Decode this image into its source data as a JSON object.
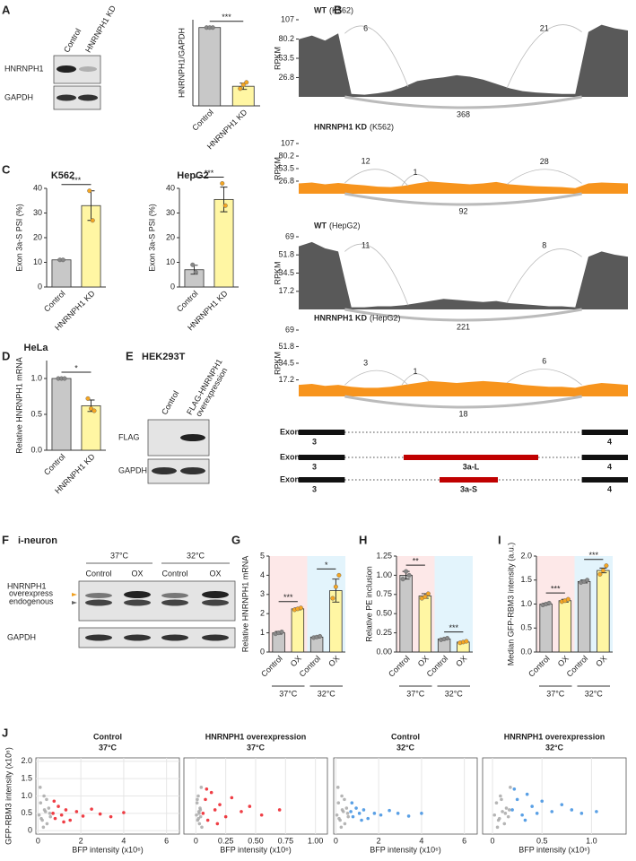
{
  "figure": {
    "panel_labels": [
      "A",
      "B",
      "C",
      "D",
      "E",
      "F",
      "G",
      "H",
      "I",
      "J"
    ]
  },
  "blots": [
    {
      "lanes": [
        "Control",
        "HNRNPH1 KD"
      ],
      "rows": [
        "HNRNPH1",
        "GAPDH"
      ]
    },
    {
      "title": "HEK293T",
      "lanes": [
        "Control",
        "FLAG-HNRNPH1"
      ],
      "lane_2_line_2": "overexpression",
      "rows": [
        "FLAG",
        "GAPDH"
      ]
    },
    {
      "title": "i-neuron",
      "groups": [
        "37°C",
        "32°C"
      ],
      "lanes": [
        "Control",
        "OX",
        "Control",
        "OX"
      ],
      "rows": [
        "HNRNPH1",
        "GAPDH"
      ],
      "bands": [
        "overexpress",
        "endogenous"
      ],
      "band_colors": [
        "#f0a020",
        "#666666"
      ]
    }
  ],
  "gene_models": {
    "label": "Exon",
    "exon_left": "3",
    "exon_right": "4",
    "isoforms": [
      "3a-L",
      "3a-S"
    ],
    "isoform_color": "#c00000"
  },
  "chart_data": [
    {
      "type": "bar",
      "ylabel": "HNRNPH1/GAPDH",
      "categories": [
        "Control",
        "HNRNPH1 KD"
      ],
      "values": [
        1.0,
        0.25
      ],
      "errors": [
        0,
        0.04
      ],
      "replicates": [
        [
          1,
          1,
          1
        ],
        [
          0.22,
          0.27,
          0.3
        ]
      ],
      "colors": [
        "#c8c8c8",
        "#fff6a3"
      ],
      "replicate_colors": [
        "#888888",
        "#f5a623"
      ],
      "ylim": [
        0,
        1.1
      ],
      "significance": [
        "***"
      ]
    },
    {
      "type": "bar",
      "title": "K562",
      "ylabel": "Exon 3a-S PSI (%)",
      "categories": [
        "Control",
        "HNRNPH1 KD"
      ],
      "values": [
        11,
        33
      ],
      "errors": [
        0.3,
        6
      ],
      "replicates": [
        [
          11,
          11
        ],
        [
          39,
          27
        ]
      ],
      "colors": [
        "#c8c8c8",
        "#fff6a3"
      ],
      "replicate_colors": [
        "#888888",
        "#f5a623"
      ],
      "ylim": [
        0,
        40
      ],
      "yticks": [
        0,
        10,
        20,
        30,
        40
      ],
      "significance": [
        "***"
      ]
    },
    {
      "type": "bar",
      "title": "HepG2",
      "ylabel": "Exon 3a-S PSI (%)",
      "categories": [
        "Control",
        "HNRNPH1 KD"
      ],
      "values": [
        7,
        35.5
      ],
      "errors": [
        1.8,
        5
      ],
      "replicates": [
        [
          9,
          6
        ],
        [
          42,
          33
        ]
      ],
      "colors": [
        "#c8c8c8",
        "#fff6a3"
      ],
      "replicate_colors": [
        "#888888",
        "#f5a623"
      ],
      "ylim": [
        0,
        40
      ],
      "yticks": [
        0,
        10,
        20,
        30,
        40
      ],
      "significance": [
        "***"
      ]
    },
    {
      "type": "bar",
      "title": "HeLa",
      "ylabel": "Relative HNRNPH1 mRNA",
      "categories": [
        "Control",
        "HNRNPH1 KD"
      ],
      "values": [
        1.0,
        0.62
      ],
      "errors": [
        0,
        0.08
      ],
      "replicates": [
        [
          1,
          1,
          1
        ],
        [
          0.72,
          0.58,
          0.55
        ]
      ],
      "colors": [
        "#c8c8c8",
        "#fff6a3"
      ],
      "replicate_colors": [
        "#888888",
        "#f5a623"
      ],
      "ylim": [
        0,
        1.25
      ],
      "yticks": [
        {
          "value": 0,
          "label": "0.0"
        },
        0.5,
        {
          "value": 1,
          "label": "1.0"
        }
      ],
      "significance": [
        "*"
      ]
    },
    {
      "type": "bar",
      "ylabel": "Relative HNRNPH1 mRNA",
      "categories": [
        "Control",
        "OX",
        "Control",
        "OX"
      ],
      "groups": [
        "37°C",
        "32°C"
      ],
      "group_colors": [
        "#fde8e8",
        "#e3f4fc"
      ],
      "values": [
        1.0,
        2.25,
        0.78,
        3.2
      ],
      "errors": [
        0.07,
        0.05,
        0.05,
        0.6
      ],
      "replicates": [
        [
          0.95,
          1.0,
          1.05
        ],
        [
          2.2,
          2.25,
          2.3
        ],
        [
          0.75,
          0.78,
          0.82
        ],
        [
          2.8,
          3.4,
          4.0
        ]
      ],
      "colors": [
        "#c8c8c8",
        "#fff6a3"
      ],
      "replicate_colors": [
        "#888888",
        "#f5a623"
      ],
      "ylim": [
        0,
        5
      ],
      "yticks": [
        0,
        1,
        2,
        3,
        4,
        5
      ],
      "significance": [
        "***",
        "*"
      ]
    },
    {
      "type": "bar",
      "ylabel": "Relative PE inclusion",
      "categories": [
        "Control",
        "OX",
        "Control",
        "OX"
      ],
      "groups": [
        "37°C",
        "32°C"
      ],
      "group_colors": [
        "#fde8e8",
        "#e3f4fc"
      ],
      "values": [
        1.0,
        0.73,
        0.17,
        0.13
      ],
      "errors": [
        0.05,
        0.03,
        0.01,
        0.01
      ],
      "replicates": [
        [
          0.95,
          1.05,
          1.0
        ],
        [
          0.7,
          0.72,
          0.76
        ],
        [
          0.16,
          0.17,
          0.18
        ],
        [
          0.12,
          0.13,
          0.14
        ]
      ],
      "colors": [
        "#c8c8c8",
        "#fff6a3"
      ],
      "replicate_colors": [
        "#888888",
        "#f5a623"
      ],
      "ylim": [
        0,
        1.25
      ],
      "yticks": [
        {
          "value": 0,
          "label": "0.00"
        },
        0.25,
        {
          "value": 0.5,
          "label": "0.50"
        },
        0.75,
        {
          "value": 1,
          "label": "1.00"
        },
        1.25
      ],
      "significance": [
        "**",
        "***"
      ]
    },
    {
      "type": "bar",
      "ylabel": "Median GFP-RBM3 intensity (a.u.)",
      "categories": [
        "Control",
        "OX",
        "Control",
        "OX"
      ],
      "groups": [
        "37°C",
        "32°C"
      ],
      "group_colors": [
        "#fde8e8",
        "#e3f4fc"
      ],
      "values": [
        1.0,
        1.07,
        1.47,
        1.7
      ],
      "errors": [
        0.02,
        0.03,
        0.03,
        0.05
      ],
      "replicates": [
        [
          0.98,
          1.0,
          1.02
        ],
        [
          1.05,
          1.07,
          1.1
        ],
        [
          1.45,
          1.47,
          1.5
        ],
        [
          1.62,
          1.7,
          1.8
        ]
      ],
      "colors": [
        "#c8c8c8",
        "#fff6a3"
      ],
      "replicate_colors": [
        "#888888",
        "#f5a623"
      ],
      "ylim": [
        0,
        2
      ],
      "yticks": [
        {
          "value": 0,
          "label": "0.0"
        },
        0.5,
        {
          "value": 1,
          "label": "1.0"
        },
        1.5,
        {
          "value": 2,
          "label": "2.0"
        }
      ],
      "significance": [
        "***",
        "***"
      ]
    },
    {
      "type": "area",
      "title": "WT",
      "subtitle": "(K562)",
      "title_color": "#666666",
      "ylabel": "RPKM",
      "color": "#595959",
      "ylim": [
        0,
        107
      ],
      "yticks": [
        26.8,
        53.5,
        80.2,
        107
      ],
      "values": [
        80,
        85,
        78,
        88,
        4,
        3,
        5,
        8,
        14,
        22,
        25,
        27,
        30,
        28,
        24,
        18,
        12,
        8,
        6,
        5,
        4,
        4,
        90,
        100,
        95,
        92
      ],
      "junction_counts": [
        6,
        21,
        368
      ]
    },
    {
      "type": "area",
      "title": "HNRNPH1 KD",
      "subtitle": "(K562)",
      "title_color": "#f7941d",
      "ylabel": "RPKM",
      "color": "#f7941d",
      "ylim": [
        0,
        107
      ],
      "yticks": [
        26.8,
        53.5,
        80.2,
        107
      ],
      "values": [
        22,
        24,
        20,
        23,
        20,
        18,
        15,
        14,
        17,
        22,
        26,
        24,
        22,
        20,
        22,
        25,
        20,
        18,
        16,
        15,
        14,
        12,
        22,
        24,
        23,
        22
      ],
      "junction_counts": [
        12,
        1,
        28,
        92
      ]
    },
    {
      "type": "area",
      "title": "WT",
      "subtitle": "(HepG2)",
      "title_color": "#666666",
      "ylabel": "RPKM",
      "color": "#595959",
      "ylim": [
        0,
        69
      ],
      "yticks": [
        17.2,
        34.5,
        51.8,
        69
      ],
      "values": [
        60,
        64,
        58,
        55,
        2,
        2,
        3,
        3,
        4,
        6,
        8,
        10,
        9,
        8,
        7,
        8,
        6,
        5,
        4,
        3,
        3,
        2,
        50,
        55,
        52,
        50
      ],
      "junction_counts": [
        11,
        8,
        221
      ]
    },
    {
      "type": "area",
      "title": "HNRNPH1 KD",
      "subtitle": "(HepG2)",
      "title_color": "#f7941d",
      "ylabel": "RPKM",
      "color": "#f7941d",
      "ylim": [
        0,
        69
      ],
      "yticks": [
        17.2,
        34.5,
        51.8,
        69
      ],
      "values": [
        12,
        13,
        11,
        12,
        10,
        9,
        9,
        10,
        12,
        14,
        16,
        15,
        14,
        15,
        16,
        15,
        14,
        12,
        11,
        10,
        10,
        9,
        12,
        14,
        13,
        12
      ],
      "junction_counts": [
        3,
        1,
        6,
        18
      ]
    },
    {
      "type": "scatter",
      "title": "Control",
      "subtitle": "37°C",
      "xlabel": "BFP intensity (x10⁶)",
      "ylabel": "GFP-RBM3 intensity (x10⁶)",
      "xlim": [
        -0.1,
        6.6
      ],
      "ylim": [
        -0.1,
        2.1
      ],
      "xticks": [
        0,
        2,
        4,
        6
      ],
      "yticks": [
        0,
        0.5,
        {
          "value": 1,
          "label": "1.0"
        },
        1.5,
        {
          "value": 2,
          "label": "2.0"
        }
      ],
      "series": [
        {
          "color": "#a8a8a8",
          "x": [
            0.05,
            0.12,
            0.2,
            0.28,
            0.35,
            0.42,
            0.5,
            0.58,
            0.1,
            0.25,
            0.4,
            0.55,
            0.3,
            0.15
          ],
          "y": [
            0.45,
            0.8,
            0.3,
            1.0,
            0.55,
            0.2,
            0.65,
            0.4,
            1.25,
            0.1,
            0.9,
            0.5,
            0.6,
            0.35
          ]
        },
        {
          "color": "#ec1c24",
          "x": [
            0.7,
            0.8,
            0.95,
            1.1,
            1.3,
            1.5,
            1.8,
            2.1,
            2.5,
            2.9,
            3.4,
            4.0,
            0.75,
            1.2
          ],
          "y": [
            0.5,
            0.35,
            0.7,
            0.45,
            0.6,
            0.3,
            0.55,
            0.42,
            0.62,
            0.48,
            0.4,
            0.52,
            0.85,
            0.25
          ]
        }
      ]
    },
    {
      "type": "scatter",
      "title": "HNRNPH1 overexpression",
      "subtitle": "37°C",
      "xlabel": "BFP intensity (x10⁶)",
      "xlim": [
        -0.1,
        1.1
      ],
      "ylim": [
        -0.1,
        2.1
      ],
      "xticks": [
        0,
        0.25,
        {
          "value": 0.5,
          "label": "0.50"
        },
        0.75,
        {
          "value": 1,
          "label": "1.00"
        }
      ],
      "series": [
        {
          "color": "#a8a8a8",
          "x": [
            0.005,
            0.01,
            0.015,
            0.02,
            0.025,
            0.03,
            0.035,
            0.04,
            0.045,
            0.05,
            0.012,
            0.028,
            0.038,
            0.022
          ],
          "y": [
            0.45,
            0.8,
            0.3,
            1.0,
            0.55,
            0.2,
            0.65,
            0.4,
            1.25,
            0.1,
            0.9,
            0.5,
            0.6,
            0.35
          ]
        },
        {
          "color": "#ec1c24",
          "x": [
            0.06,
            0.08,
            0.1,
            0.13,
            0.16,
            0.2,
            0.25,
            0.3,
            0.38,
            0.45,
            0.55,
            0.7,
            0.09,
            0.18
          ],
          "y": [
            0.5,
            0.9,
            0.3,
            1.1,
            0.6,
            0.75,
            0.4,
            0.95,
            0.55,
            0.7,
            0.45,
            0.6,
            1.2,
            0.2
          ]
        }
      ]
    },
    {
      "type": "scatter",
      "title": "Control",
      "subtitle": "32°C",
      "xlabel": "BFP intensity (x10⁶)",
      "xlim": [
        -0.1,
        6.6
      ],
      "ylim": [
        -0.1,
        2.1
      ],
      "xticks": [
        0,
        2,
        4,
        6
      ],
      "series": [
        {
          "color": "#a8a8a8",
          "x": [
            0.05,
            0.12,
            0.2,
            0.28,
            0.35,
            0.42,
            0.5,
            0.58,
            0.1,
            0.25,
            0.4,
            0.55,
            0.3,
            0.15
          ],
          "y": [
            0.45,
            0.8,
            0.3,
            1.0,
            0.55,
            0.2,
            0.65,
            0.4,
            1.25,
            0.1,
            0.9,
            0.5,
            0.6,
            0.35
          ]
        },
        {
          "color": "#3d8fe0",
          "x": [
            0.7,
            0.8,
            0.95,
            1.1,
            1.3,
            1.5,
            1.8,
            2.1,
            2.5,
            2.9,
            3.4,
            4.0,
            0.75,
            1.2
          ],
          "y": [
            0.55,
            0.4,
            0.65,
            0.5,
            0.6,
            0.35,
            0.5,
            0.45,
            0.58,
            0.5,
            0.42,
            0.5,
            0.8,
            0.3
          ]
        }
      ]
    },
    {
      "type": "scatter",
      "title": "HNRNPH1 overexpression",
      "subtitle": "32°C",
      "xlabel": "BFP intensity (x10⁶)",
      "xlim": [
        -0.1,
        1.35
      ],
      "ylim": [
        -0.1,
        2.1
      ],
      "xticks": [
        0,
        0.5,
        {
          "value": 1,
          "label": "1.0"
        }
      ],
      "series": [
        {
          "color": "#a8a8a8",
          "x": [
            0.02,
            0.04,
            0.06,
            0.08,
            0.1,
            0.12,
            0.14,
            0.16,
            0.18,
            0.05,
            0.09,
            0.13,
            0.17,
            0.07
          ],
          "y": [
            0.45,
            0.8,
            0.3,
            1.0,
            0.55,
            0.2,
            0.65,
            0.4,
            1.25,
            0.1,
            0.9,
            0.5,
            0.6,
            0.35
          ]
        },
        {
          "color": "#3d8fe0",
          "x": [
            0.2,
            0.25,
            0.3,
            0.35,
            0.4,
            0.45,
            0.5,
            0.6,
            0.7,
            0.8,
            0.9,
            1.05,
            0.22,
            0.33
          ],
          "y": [
            0.6,
            0.9,
            0.45,
            1.05,
            0.7,
            0.5,
            0.85,
            0.55,
            0.75,
            0.6,
            0.5,
            0.55,
            1.2,
            0.3
          ]
        }
      ]
    }
  ]
}
